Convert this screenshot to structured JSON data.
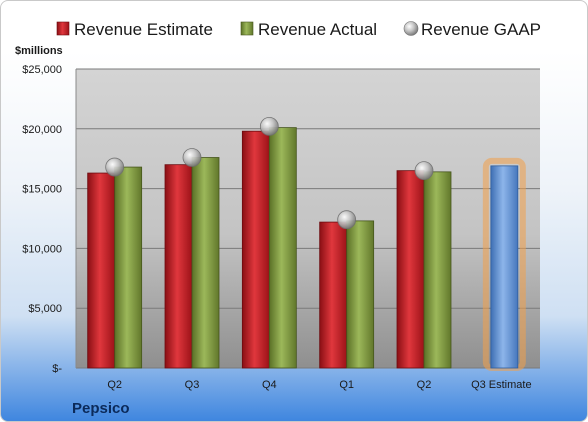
{
  "colors": {
    "estimate": "#c8232a",
    "actual": "#7f9a3c",
    "gaap": "#b9b9b9",
    "estimate_projection": "#6a98d6",
    "projection_glow": "#f2a14a"
  },
  "company": "Pepsico",
  "chart_data": {
    "type": "bar",
    "title": "",
    "unit_label": "$millions",
    "xlabel": "",
    "ylabel": "",
    "ylim": [
      0,
      25000
    ],
    "y_ticks": [
      0,
      5000,
      10000,
      15000,
      20000,
      25000
    ],
    "y_tick_labels": [
      "$-",
      "$5,000",
      "$10,000",
      "$15,000",
      "$20,000",
      "$25,000"
    ],
    "categories": [
      "Q2",
      "Q3",
      "Q4",
      "Q1",
      "Q2",
      "Q3 Estimate"
    ],
    "legend_position": "top",
    "grid": true,
    "series": [
      {
        "name": "Revenue Estimate",
        "values": [
          16300,
          17000,
          19800,
          12200,
          16500,
          16900
        ]
      },
      {
        "name": "Revenue Actual",
        "values": [
          16800,
          17600,
          20100,
          12300,
          16400,
          null
        ]
      },
      {
        "name": "Revenue GAAP",
        "values": [
          16800,
          17600,
          20200,
          12400,
          16500,
          null
        ]
      }
    ]
  }
}
